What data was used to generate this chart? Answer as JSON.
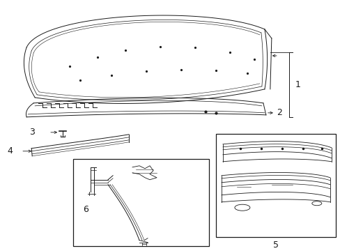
{
  "background_color": "#ffffff",
  "line_color": "#1a1a1a",
  "label_fontsize": 9,
  "fig_width": 4.89,
  "fig_height": 3.6,
  "dpi": 100
}
